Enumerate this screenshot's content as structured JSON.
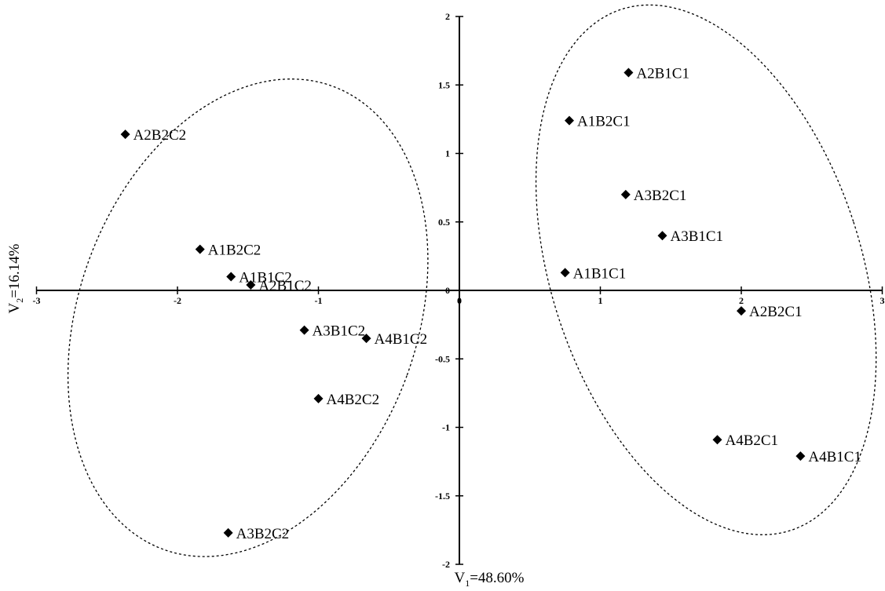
{
  "chart_data": {
    "type": "scatter",
    "title": "",
    "xlabel_main": "V",
    "xlabel_sub": "1",
    "xlabel_rest": "=48.60%",
    "ylabel_main": "V",
    "ylabel_sub": "2",
    "ylabel_rest": "=16.14%",
    "xlim": [
      -3,
      3
    ],
    "ylim": [
      -2,
      2
    ],
    "xticks": [
      -3,
      -2,
      -1,
      0,
      1,
      2,
      3
    ],
    "yticks": [
      -2,
      -1.5,
      -1,
      -0.5,
      0,
      0.5,
      1,
      1.5,
      2
    ],
    "grid": false,
    "marker": "diamond",
    "marker_color": "#000000",
    "points": [
      {
        "label": "A2B2C2",
        "x": -2.37,
        "y": 1.14
      },
      {
        "label": "A1B2C2",
        "x": -1.84,
        "y": 0.3
      },
      {
        "label": "A1B1C2",
        "x": -1.62,
        "y": 0.1
      },
      {
        "label": "A2B1C2",
        "x": -1.48,
        "y": 0.04
      },
      {
        "label": "A3B1C2",
        "x": -1.1,
        "y": -0.29
      },
      {
        "label": "A4B1C2",
        "x": -0.66,
        "y": -0.35
      },
      {
        "label": "A4B2C2",
        "x": -1.0,
        "y": -0.79
      },
      {
        "label": "A3B2C2",
        "x": -1.64,
        "y": -1.77
      },
      {
        "label": "A2B1C1",
        "x": 1.2,
        "y": 1.59
      },
      {
        "label": "A1B2C1",
        "x": 0.78,
        "y": 1.24
      },
      {
        "label": "A3B2C1",
        "x": 1.18,
        "y": 0.7
      },
      {
        "label": "A3B1C1",
        "x": 1.44,
        "y": 0.4
      },
      {
        "label": "A1B1C1",
        "x": 0.75,
        "y": 0.13
      },
      {
        "label": "A2B2C1",
        "x": 2.0,
        "y": -0.15
      },
      {
        "label": "A4B2C1",
        "x": 1.83,
        "y": -1.09
      },
      {
        "label": "A4B1C1",
        "x": 2.42,
        "y": -1.21
      }
    ],
    "groups": [
      {
        "members": [
          "A2B2C2",
          "A1B2C2",
          "A1B1C2",
          "A2B1C2",
          "A3B1C2",
          "A4B1C2",
          "A4B2C2",
          "A3B2C2"
        ],
        "cx": -1.5,
        "cy": -0.2,
        "rx": 1.2,
        "ry": 1.8,
        "angle": 20
      },
      {
        "members": [
          "A2B1C1",
          "A1B2C1",
          "A3B2C1",
          "A3B1C1",
          "A1B1C1",
          "A2B2C1",
          "A4B2C1",
          "A4B1C1"
        ],
        "cx": 1.75,
        "cy": 0.15,
        "rx": 1.1,
        "ry": 2.0,
        "angle": -18
      }
    ]
  }
}
